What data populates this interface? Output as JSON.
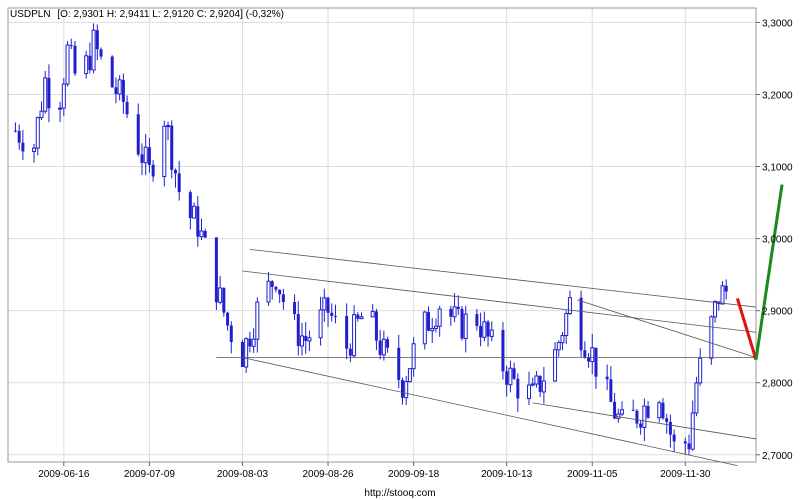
{
  "header": {
    "ticker": "USDPLN",
    "ohlc_text": "[O: 2,9301  H: 2,9411  L: 2,9120  C: 2,9204] (-0,32%)"
  },
  "footer": {
    "source": "http://stooq.com"
  },
  "colors": {
    "background": "#ffffff",
    "grid": "#dddddd",
    "candle": "#1f1fcf",
    "trendline": "#555555",
    "forecast_down": "#e01010",
    "forecast_up": "#1a8a1a",
    "frame": "#999999"
  },
  "chart_data": {
    "type": "candlestick",
    "title": "USDPLN [O: 2,9301  H: 2,9411  L: 2,9120  C: 2,9204] (-0,32%)",
    "xlabel": "",
    "ylabel": "",
    "grid": true,
    "y_axis_side": "right",
    "ylim": [
      2.69,
      3.32
    ],
    "yticks": [
      {
        "value": 2.7,
        "label": "2,7000"
      },
      {
        "value": 2.8,
        "label": "2,8000"
      },
      {
        "value": 2.9,
        "label": "2,9000"
      },
      {
        "value": 3.0,
        "label": "3,0000"
      },
      {
        "value": 3.1,
        "label": "3,1000"
      },
      {
        "value": 3.2,
        "label": "3,2000"
      },
      {
        "value": 3.3,
        "label": "3,3000"
      }
    ],
    "x_range": [
      "2009-06-01",
      "2009-12-19"
    ],
    "xticks": [
      {
        "date": "2009-06-16",
        "label": "2009-06-16"
      },
      {
        "date": "2009-07-09",
        "label": "2009-07-09"
      },
      {
        "date": "2009-08-03",
        "label": "2009-08-03"
      },
      {
        "date": "2009-08-26",
        "label": "2009-08-26"
      },
      {
        "date": "2009-09-18",
        "label": "2009-09-18"
      },
      {
        "date": "2009-10-13",
        "label": "2009-10-13"
      },
      {
        "date": "2009-11-05",
        "label": "2009-11-05"
      },
      {
        "date": "2009-11-30",
        "label": "2009-11-30"
      }
    ],
    "close_path": [
      [
        "2009-06-03",
        3.15
      ],
      [
        "2009-06-08",
        3.13
      ],
      [
        "2009-06-11",
        3.22
      ],
      [
        "2009-06-14",
        3.17
      ],
      [
        "2009-06-17",
        3.26
      ],
      [
        "2009-06-20",
        3.21
      ],
      [
        "2009-06-24",
        3.27
      ],
      [
        "2009-06-28",
        3.22
      ],
      [
        "2009-07-02",
        3.19
      ],
      [
        "2009-07-06",
        3.13
      ],
      [
        "2009-07-09",
        3.09
      ],
      [
        "2009-07-13",
        3.17
      ],
      [
        "2009-07-15",
        3.12
      ],
      [
        "2009-07-18",
        3.04
      ],
      [
        "2009-07-22",
        3.02
      ],
      [
        "2009-07-26",
        2.95
      ],
      [
        "2009-07-30",
        2.88
      ],
      [
        "2009-08-03",
        2.84
      ],
      [
        "2009-08-07",
        2.9
      ],
      [
        "2009-08-12",
        2.95
      ],
      [
        "2009-08-16",
        2.88
      ],
      [
        "2009-08-20",
        2.86
      ],
      [
        "2009-08-26",
        2.9
      ],
      [
        "2009-08-31",
        2.85
      ],
      [
        "2009-09-05",
        2.9
      ],
      [
        "2009-09-10",
        2.84
      ],
      [
        "2009-09-15",
        2.8
      ],
      [
        "2009-09-20",
        2.87
      ],
      [
        "2009-09-25",
        2.91
      ],
      [
        "2009-09-30",
        2.88
      ],
      [
        "2009-10-05",
        2.89
      ],
      [
        "2009-10-10",
        2.84
      ],
      [
        "2009-10-15",
        2.8
      ],
      [
        "2009-10-20",
        2.78
      ],
      [
        "2009-10-26",
        2.84
      ],
      [
        "2009-10-30",
        2.91
      ],
      [
        "2009-11-02",
        2.87
      ],
      [
        "2009-11-05",
        2.84
      ],
      [
        "2009-11-09",
        2.78
      ],
      [
        "2009-11-13",
        2.74
      ],
      [
        "2009-11-18",
        2.76
      ],
      [
        "2009-11-23",
        2.79
      ],
      [
        "2009-11-27",
        2.71
      ],
      [
        "2009-12-01",
        2.72
      ],
      [
        "2009-12-03",
        2.8
      ],
      [
        "2009-12-06",
        2.86
      ],
      [
        "2009-12-09",
        2.92
      ],
      [
        "2009-12-12",
        2.93
      ]
    ],
    "last_candle": {
      "open": 2.9301,
      "high": 2.9411,
      "low": 2.912,
      "close": 2.9204
    },
    "lines": [
      {
        "name": "support-horizontal",
        "kind": "trendline",
        "from": [
          "2009-07-27",
          2.835
        ],
        "to": [
          "2009-12-19",
          2.835
        ]
      },
      {
        "name": "upper-channel",
        "kind": "trendline",
        "from": [
          "2009-08-05",
          2.985
        ],
        "to": [
          "2009-12-19",
          2.905
        ]
      },
      {
        "name": "middle-channel",
        "kind": "trendline",
        "from": [
          "2009-08-03",
          2.955
        ],
        "to": [
          "2009-12-19",
          2.87
        ]
      },
      {
        "name": "lower-channel",
        "kind": "trendline",
        "from": [
          "2009-08-03",
          2.835
        ],
        "to": [
          "2009-12-14",
          2.685
        ]
      },
      {
        "name": "diagonal-resistance",
        "kind": "trendline",
        "from": [
          "2009-11-01",
          2.915
        ],
        "to": [
          "2009-12-19",
          2.835
        ]
      },
      {
        "name": "lower-support-2",
        "kind": "trendline",
        "from": [
          "2009-10-20",
          2.772
        ],
        "to": [
          "2009-12-19",
          2.722
        ]
      },
      {
        "name": "forecast-down",
        "kind": "forecast-down",
        "from": [
          "2009-12-14",
          2.917
        ],
        "to": [
          "2009-12-19",
          2.832
        ]
      },
      {
        "name": "forecast-up",
        "kind": "forecast-up",
        "from": [
          "2009-12-19",
          2.832
        ],
        "to": [
          "2009-12-26",
          3.075
        ]
      }
    ]
  }
}
